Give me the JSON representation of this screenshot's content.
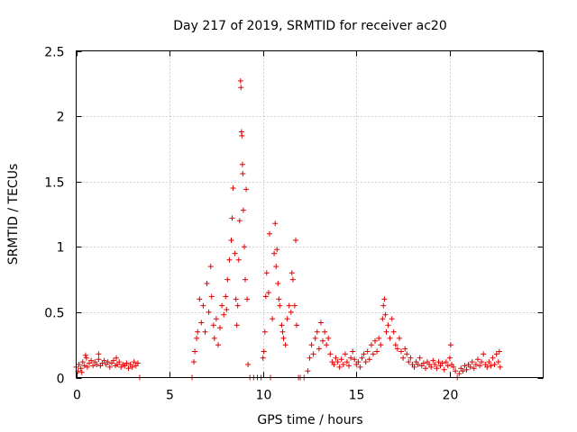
{
  "chart_data": {
    "type": "scatter",
    "title": "Day 217 of 2019, SRMTID for receiver ac20",
    "xlabel": "GPS time / hours",
    "ylabel": "SRMTID / TECUs",
    "xlim": [
      0,
      25
    ],
    "ylim": [
      0,
      2.5
    ],
    "xticks": [
      0,
      5,
      10,
      15,
      20
    ],
    "xtick_labels": [
      "0",
      "5",
      "10",
      "15",
      "20"
    ],
    "yticks": [
      0,
      0.5,
      1,
      1.5,
      2,
      2.5
    ],
    "ytick_labels": [
      "0",
      "0.5",
      "1",
      "1.5",
      "2",
      "2.5"
    ],
    "grid": true,
    "marker": "+",
    "series": [
      {
        "name": "SRMTID",
        "color": "#e00000",
        "points": [
          [
            0.0,
            0.08
          ],
          [
            0.1,
            0.05
          ],
          [
            0.15,
            0.1
          ],
          [
            0.25,
            0.07
          ],
          [
            0.35,
            0.12
          ],
          [
            0.45,
            0.09
          ],
          [
            0.55,
            0.15
          ],
          [
            0.6,
            0.08
          ],
          [
            0.7,
            0.11
          ],
          [
            0.8,
            0.13
          ],
          [
            0.9,
            0.09
          ],
          [
            1.0,
            0.12
          ],
          [
            1.1,
            0.1
          ],
          [
            1.2,
            0.14
          ],
          [
            1.3,
            0.09
          ],
          [
            1.4,
            0.11
          ],
          [
            1.5,
            0.13
          ],
          [
            1.6,
            0.1
          ],
          [
            1.7,
            0.12
          ],
          [
            1.8,
            0.08
          ],
          [
            1.9,
            0.11
          ],
          [
            2.0,
            0.13
          ],
          [
            2.1,
            0.09
          ],
          [
            2.2,
            0.1
          ],
          [
            2.3,
            0.12
          ],
          [
            2.4,
            0.08
          ],
          [
            2.5,
            0.1
          ],
          [
            2.6,
            0.09
          ],
          [
            2.7,
            0.11
          ],
          [
            2.8,
            0.07
          ],
          [
            2.9,
            0.1
          ],
          [
            3.0,
            0.08
          ],
          [
            3.1,
            0.12
          ],
          [
            3.2,
            0.09
          ],
          [
            3.3,
            0.11
          ],
          [
            3.4,
            0.0
          ],
          [
            0.5,
            0.17
          ],
          [
            1.2,
            0.18
          ],
          [
            2.15,
            0.15
          ],
          [
            0.3,
            0.04
          ],
          [
            6.2,
            0.0
          ],
          [
            6.3,
            0.12
          ],
          [
            6.35,
            0.2
          ],
          [
            6.45,
            0.3
          ],
          [
            6.5,
            0.35
          ],
          [
            6.6,
            0.6
          ],
          [
            6.7,
            0.42
          ],
          [
            6.8,
            0.55
          ],
          [
            6.9,
            0.35
          ],
          [
            7.0,
            0.72
          ],
          [
            7.1,
            0.5
          ],
          [
            7.2,
            0.85
          ],
          [
            7.25,
            0.62
          ],
          [
            7.35,
            0.4
          ],
          [
            7.4,
            0.3
          ],
          [
            7.5,
            0.45
          ],
          [
            7.6,
            0.25
          ],
          [
            7.7,
            0.38
          ],
          [
            7.8,
            0.55
          ],
          [
            7.9,
            0.48
          ],
          [
            8.0,
            0.62
          ],
          [
            8.05,
            0.52
          ],
          [
            8.1,
            0.75
          ],
          [
            8.2,
            0.9
          ],
          [
            8.3,
            1.05
          ],
          [
            8.35,
            1.22
          ],
          [
            8.4,
            1.45
          ],
          [
            8.5,
            0.95
          ],
          [
            8.55,
            0.6
          ],
          [
            8.6,
            0.4
          ],
          [
            8.65,
            0.55
          ],
          [
            8.7,
            0.9
          ],
          [
            8.75,
            1.2
          ],
          [
            8.8,
            2.27
          ],
          [
            8.82,
            2.22
          ],
          [
            8.85,
            1.88
          ],
          [
            8.87,
            1.85
          ],
          [
            8.9,
            1.63
          ],
          [
            8.92,
            1.56
          ],
          [
            8.95,
            1.28
          ],
          [
            9.0,
            1.0
          ],
          [
            9.05,
            0.75
          ],
          [
            9.1,
            1.44
          ],
          [
            9.15,
            0.6
          ],
          [
            9.2,
            0.1
          ],
          [
            9.3,
            0.0
          ],
          [
            9.5,
            0.0
          ],
          [
            9.7,
            0.0
          ],
          [
            9.9,
            0.0
          ],
          [
            10.0,
            0.15
          ],
          [
            10.05,
            0.2
          ],
          [
            10.1,
            0.35
          ],
          [
            10.15,
            0.62
          ],
          [
            10.2,
            0.8
          ],
          [
            10.3,
            0.65
          ],
          [
            10.35,
            1.1
          ],
          [
            10.4,
            0.0
          ],
          [
            10.5,
            0.45
          ],
          [
            10.6,
            0.95
          ],
          [
            10.65,
            1.18
          ],
          [
            10.7,
            0.85
          ],
          [
            10.75,
            0.98
          ],
          [
            10.8,
            0.72
          ],
          [
            10.85,
            0.6
          ],
          [
            10.9,
            0.55
          ],
          [
            11.0,
            0.4
          ],
          [
            11.05,
            0.35
          ],
          [
            11.1,
            0.3
          ],
          [
            11.2,
            0.25
          ],
          [
            11.3,
            0.45
          ],
          [
            11.4,
            0.55
          ],
          [
            11.5,
            0.5
          ],
          [
            11.55,
            0.8
          ],
          [
            11.6,
            0.75
          ],
          [
            11.7,
            0.55
          ],
          [
            11.75,
            1.05
          ],
          [
            11.8,
            0.4
          ],
          [
            11.9,
            0.0
          ],
          [
            12.0,
            0.0
          ],
          [
            12.2,
            0.0
          ],
          [
            12.4,
            0.05
          ],
          [
            12.5,
            0.15
          ],
          [
            12.6,
            0.25
          ],
          [
            12.7,
            0.18
          ],
          [
            12.8,
            0.3
          ],
          [
            12.9,
            0.35
          ],
          [
            13.0,
            0.22
          ],
          [
            13.1,
            0.42
          ],
          [
            13.2,
            0.28
          ],
          [
            13.3,
            0.35
          ],
          [
            13.4,
            0.25
          ],
          [
            13.5,
            0.3
          ],
          [
            13.6,
            0.18
          ],
          [
            13.7,
            0.12
          ],
          [
            13.8,
            0.1
          ],
          [
            13.9,
            0.15
          ],
          [
            14.0,
            0.12
          ],
          [
            14.1,
            0.08
          ],
          [
            14.2,
            0.14
          ],
          [
            14.3,
            0.1
          ],
          [
            14.4,
            0.18
          ],
          [
            14.5,
            0.12
          ],
          [
            14.6,
            0.09
          ],
          [
            14.7,
            0.15
          ],
          [
            14.8,
            0.2
          ],
          [
            14.9,
            0.14
          ],
          [
            15.0,
            0.1
          ],
          [
            15.1,
            0.12
          ],
          [
            15.2,
            0.08
          ],
          [
            15.3,
            0.15
          ],
          [
            15.4,
            0.18
          ],
          [
            15.5,
            0.12
          ],
          [
            15.6,
            0.2
          ],
          [
            15.7,
            0.14
          ],
          [
            15.8,
            0.25
          ],
          [
            15.9,
            0.18
          ],
          [
            16.0,
            0.28
          ],
          [
            16.1,
            0.2
          ],
          [
            16.2,
            0.3
          ],
          [
            16.3,
            0.25
          ],
          [
            16.4,
            0.45
          ],
          [
            16.45,
            0.55
          ],
          [
            16.5,
            0.6
          ],
          [
            16.55,
            0.48
          ],
          [
            16.6,
            0.35
          ],
          [
            16.7,
            0.4
          ],
          [
            16.8,
            0.3
          ],
          [
            16.9,
            0.45
          ],
          [
            17.0,
            0.35
          ],
          [
            17.1,
            0.25
          ],
          [
            17.2,
            0.22
          ],
          [
            17.3,
            0.3
          ],
          [
            17.4,
            0.2
          ],
          [
            17.5,
            0.15
          ],
          [
            17.6,
            0.22
          ],
          [
            17.7,
            0.18
          ],
          [
            17.8,
            0.12
          ],
          [
            17.9,
            0.15
          ],
          [
            18.0,
            0.1
          ],
          [
            18.1,
            0.08
          ],
          [
            18.2,
            0.12
          ],
          [
            18.3,
            0.1
          ],
          [
            18.4,
            0.15
          ],
          [
            18.5,
            0.09
          ],
          [
            18.6,
            0.11
          ],
          [
            18.7,
            0.07
          ],
          [
            18.8,
            0.12
          ],
          [
            18.9,
            0.1
          ],
          [
            19.0,
            0.08
          ],
          [
            19.1,
            0.13
          ],
          [
            19.2,
            0.1
          ],
          [
            19.3,
            0.07
          ],
          [
            19.4,
            0.12
          ],
          [
            19.5,
            0.09
          ],
          [
            19.6,
            0.11
          ],
          [
            19.7,
            0.06
          ],
          [
            19.8,
            0.12
          ],
          [
            19.9,
            0.09
          ],
          [
            20.0,
            0.15
          ],
          [
            20.05,
            0.25
          ],
          [
            20.1,
            0.1
          ],
          [
            20.2,
            0.08
          ],
          [
            20.3,
            0.05
          ],
          [
            20.4,
            0.0
          ],
          [
            20.5,
            0.03
          ],
          [
            20.6,
            0.07
          ],
          [
            20.7,
            0.05
          ],
          [
            20.8,
            0.09
          ],
          [
            20.9,
            0.06
          ],
          [
            21.0,
            0.1
          ],
          [
            21.1,
            0.08
          ],
          [
            21.2,
            0.12
          ],
          [
            21.3,
            0.07
          ],
          [
            21.4,
            0.1
          ],
          [
            21.5,
            0.14
          ],
          [
            21.6,
            0.09
          ],
          [
            21.7,
            0.12
          ],
          [
            21.8,
            0.18
          ],
          [
            21.9,
            0.1
          ],
          [
            22.0,
            0.08
          ],
          [
            22.1,
            0.12
          ],
          [
            22.2,
            0.09
          ],
          [
            22.3,
            0.15
          ],
          [
            22.4,
            0.1
          ],
          [
            22.5,
            0.18
          ],
          [
            22.6,
            0.12
          ],
          [
            22.65,
            0.2
          ],
          [
            22.7,
            0.08
          ]
        ]
      }
    ]
  }
}
